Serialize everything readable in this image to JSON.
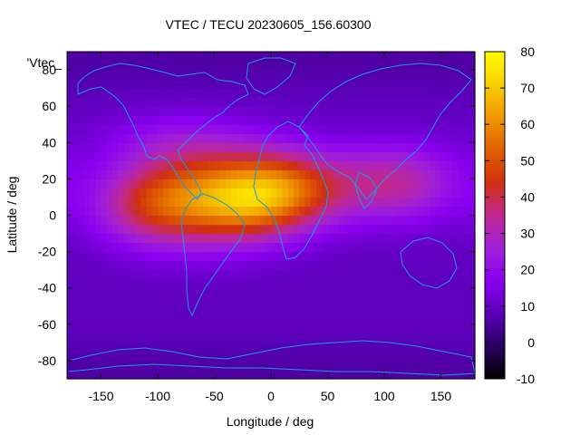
{
  "chart_data": {
    "type": "heatmap",
    "title": "VTEC / TECU 20230605_156.60300",
    "xlabel": "Longitude / deg",
    "ylabel": "Latitude / deg",
    "key_label": "'Vtec_",
    "xlim": [
      -180,
      180
    ],
    "ylim": [
      -90,
      90
    ],
    "x_ticks": [
      -150,
      -100,
      -50,
      0,
      50,
      100,
      150
    ],
    "y_ticks": [
      -80,
      -60,
      -40,
      -20,
      0,
      20,
      40,
      60,
      80
    ],
    "colorbar": {
      "range": [
        -10,
        80
      ],
      "ticks": [
        -10,
        0,
        10,
        20,
        30,
        40,
        50,
        60,
        70,
        80
      ],
      "palette": [
        "#000000",
        "#2a0060",
        "#5a00b8",
        "#8a00f0",
        "#a020d8",
        "#c02890",
        "#d03010",
        "#e06000",
        "#f09800",
        "#f8d000",
        "#ffff00"
      ]
    },
    "grid": {
      "lon_step": 5,
      "lat_step": 5,
      "background_vtec": 9,
      "anomalies": [
        {
          "lon": -65,
          "lat": 10,
          "peak": 34,
          "sigma_lon": 45,
          "sigma_lat": 18
        },
        {
          "lon": 10,
          "lat": 15,
          "peak": 38,
          "sigma_lon": 40,
          "sigma_lat": 15
        },
        {
          "lon": -20,
          "lat": 5,
          "peak": 18,
          "sigma_lon": 35,
          "sigma_lat": 14
        },
        {
          "lon": 110,
          "lat": 18,
          "peak": 24,
          "sigma_lon": 40,
          "sigma_lat": 15
        },
        {
          "lon": -110,
          "lat": 5,
          "peak": 18,
          "sigma_lon": 35,
          "sigma_lat": 15
        },
        {
          "lon": -80,
          "lat": 40,
          "peak": 10,
          "sigma_lon": 50,
          "sigma_lat": 12
        }
      ]
    }
  }
}
